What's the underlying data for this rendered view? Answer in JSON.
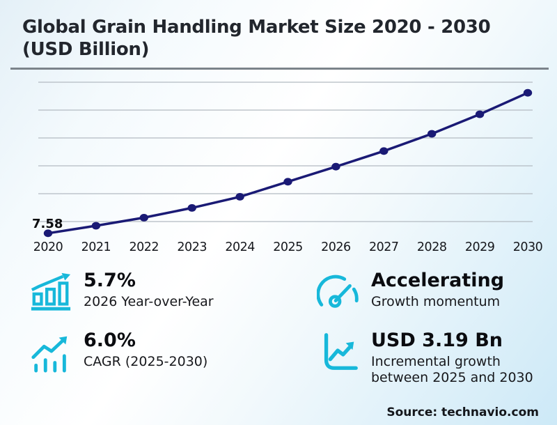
{
  "title": "Global Grain Handling Market Size 2020 - 2030 (USD Billion)",
  "chart_data": {
    "type": "line",
    "title": "Global Grain Handling Market Size 2020 - 2030 (USD Billion)",
    "x": [
      2020,
      2021,
      2022,
      2023,
      2024,
      2025,
      2026,
      2027,
      2028,
      2029,
      2030
    ],
    "series": [
      {
        "name": "Market size (USD Billion)",
        "values": [
          7.58,
          7.85,
          8.14,
          8.49,
          8.89,
          9.43,
          9.97,
          10.53,
          11.15,
          11.85,
          12.62
        ]
      }
    ],
    "annotations": [
      {
        "x": 2020,
        "text": "7.58"
      }
    ],
    "y_gridlines": [
      8,
      9,
      10,
      11,
      12,
      13
    ],
    "ylim": [
      7.3,
      13.4
    ],
    "grid": true,
    "legend": "none",
    "xlabel": "",
    "ylabel": "",
    "line_color": "#1a1a75",
    "marker_color": "#1a1a75",
    "grid_color": "#b3bac1",
    "tick_color": "#15171c"
  },
  "stats": [
    {
      "icon": "bar-chart-trend-icon",
      "value": "5.7%",
      "label": "2026 Year-over-Year"
    },
    {
      "icon": "speedometer-icon",
      "value": "Accelerating",
      "label": "Growth momentum"
    },
    {
      "icon": "trend-arrow-bars-icon",
      "value": "6.0%",
      "label": "CAGR (2025-2030)"
    },
    {
      "icon": "growth-chart-axis-icon",
      "value": "USD 3.19 Bn",
      "label": "Incremental growth between 2025 and 2030"
    }
  ],
  "footer": {
    "source": "Source: technavio.com"
  },
  "colors": {
    "accent_cyan": "#17b8da",
    "line_navy": "#1a1a75",
    "separator_gray": "#7b838a"
  }
}
